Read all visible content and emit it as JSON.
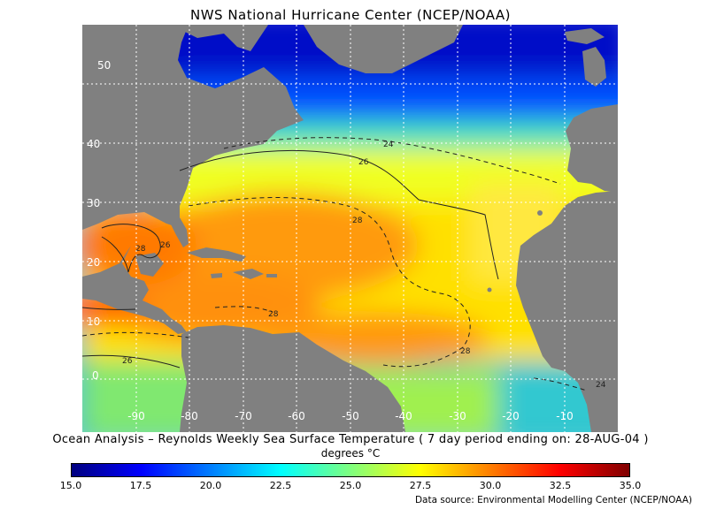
{
  "title": "NWS National Hurricane Center (NCEP/NOAA)",
  "caption": "Ocean Analysis – Reynolds Weekly Sea Surface Temperature ( 7 day period ending on: 28-AUG-04 )",
  "units": "degrees °C",
  "source": "Data source: Environmental Modelling Center (NCEP/NOAA)",
  "map": {
    "lon_range": [
      -100,
      0
    ],
    "lat_range": [
      -5,
      57
    ],
    "lon_labels": [
      "-90",
      "-80",
      "-70",
      "-60",
      "-50",
      "-40",
      "-30",
      "-20",
      "-10"
    ],
    "lat_labels": [
      "0",
      "10",
      "20",
      "30",
      "40",
      "50"
    ],
    "contour_labels": [
      "24",
      "26",
      "28",
      "28",
      "28",
      "26",
      "24",
      "26",
      "28",
      "24"
    ],
    "colors": {
      "land": "#808080",
      "grid": "#ffffff"
    }
  },
  "colorbar": {
    "min": 15.0,
    "max": 35.0,
    "ticks": [
      "15.0",
      "17.5",
      "20.0",
      "22.5",
      "25.0",
      "27.5",
      "30.0",
      "32.5",
      "35.0"
    ],
    "colors": [
      "#00007f",
      "#0000ff",
      "#007fff",
      "#00ffff",
      "#7fff7f",
      "#ffff00",
      "#ff7f00",
      "#ff0000",
      "#7f0000"
    ]
  }
}
